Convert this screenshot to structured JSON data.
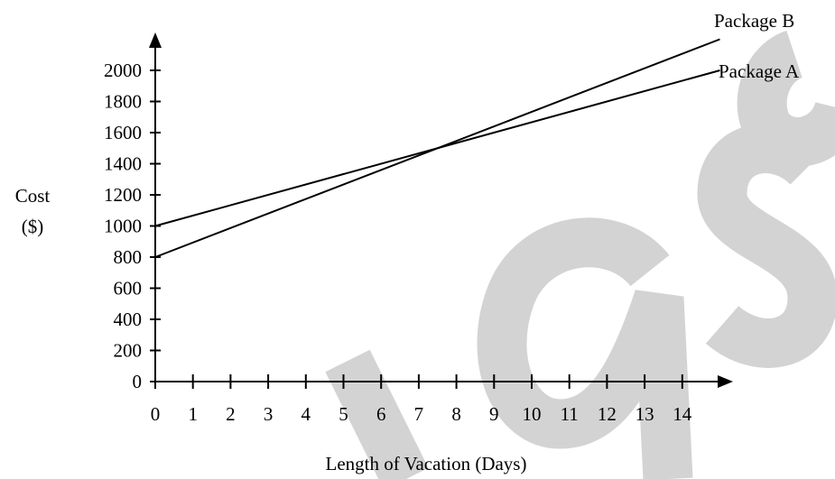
{
  "chart_data": {
    "type": "line",
    "xlabel": "Length of Vacation (Days)",
    "ylabel": [
      "Cost",
      "($)"
    ],
    "x_ticks": [
      "0",
      "1",
      "2",
      "3",
      "4",
      "5",
      "6",
      "7",
      "8",
      "9",
      "10",
      "11",
      "12",
      "13",
      "14"
    ],
    "y_ticks": [
      "0",
      "200",
      "400",
      "600",
      "800",
      "1000",
      "1200",
      "1400",
      "1600",
      "1800",
      "2000"
    ],
    "xlim": [
      0,
      14
    ],
    "ylim": [
      0,
      2000
    ],
    "grid": false,
    "series": [
      {
        "name": "Package A",
        "x": [
          0,
          15
        ],
        "y": [
          1000,
          2000
        ],
        "color": "#000000"
      },
      {
        "name": "Package B",
        "x": [
          0,
          15
        ],
        "y": [
          800,
          2200
        ],
        "color": "#000000"
      }
    ]
  },
  "watermark": {
    "text": "aso",
    "color": "#d3d3d3"
  }
}
